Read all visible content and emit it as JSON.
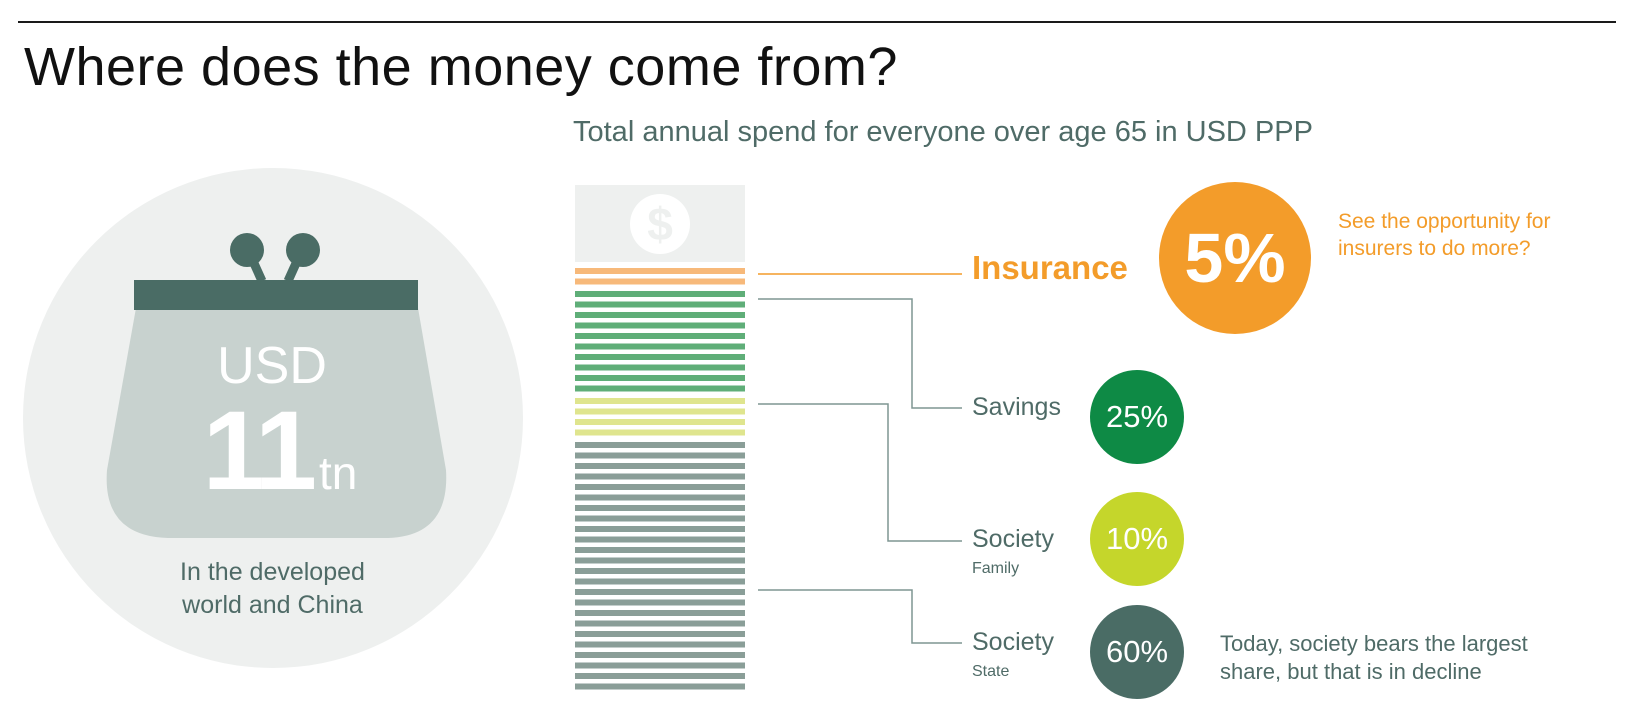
{
  "title": "Where does the money come from?",
  "subtitle": "Total annual spend for everyone over age 65 in USD PPP",
  "total": {
    "currency": "USD",
    "amount": "11",
    "unit": "tn",
    "caption_line1": "In the developed",
    "caption_line2": "world and China"
  },
  "icons": {
    "purse": "coin-purse-icon",
    "dollar": "dollar-coin-icon"
  },
  "colors": {
    "insurance": "#f39c2a",
    "insurance_bar": "#f7b97a",
    "savings": "#0e8a45",
    "savings_bar": "#5fae78",
    "family": "#c5d62b",
    "family_bar": "#dfe58e",
    "state": "#4a6c65",
    "state_bar": "#8a9e98",
    "text": "#4f6b67"
  },
  "chart_data": {
    "type": "bar",
    "title": "Where does the money come from?",
    "subtitle": "Total annual spend for everyone over age 65 in USD PPP",
    "categories": [
      "Insurance",
      "Savings",
      "Society (Family)",
      "Society (State)"
    ],
    "values": [
      5,
      25,
      10,
      60
    ],
    "value_labels": [
      "5%",
      "25%",
      "10%",
      "60%"
    ],
    "labels": {
      "insurance": "Insurance",
      "savings": "Savings",
      "family_main": "Society",
      "family_sub": "Family",
      "state_main": "Society",
      "state_sub": "State"
    },
    "annotations": {
      "insurance": "See the opportunity for insurers to do more?",
      "state": "Today, society bears the largest share, but that is in decline"
    },
    "unit": "%"
  }
}
